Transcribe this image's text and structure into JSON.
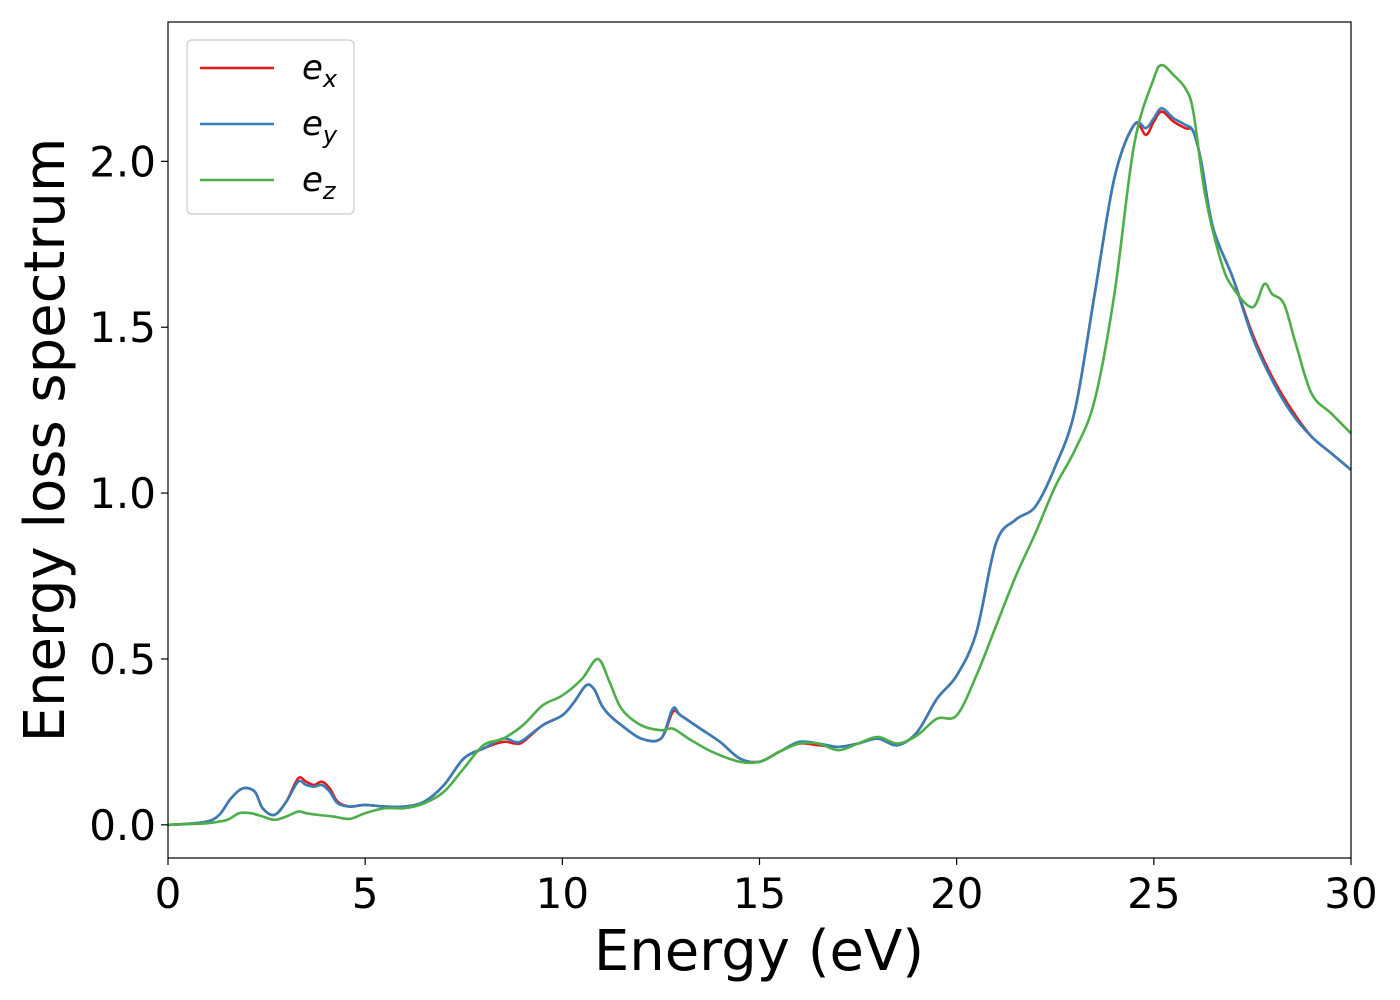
{
  "chart_data": {
    "type": "line",
    "title": "",
    "xlabel": "Energy (eV)",
    "ylabel": "Energy loss spectrum",
    "xlim": [
      0,
      30
    ],
    "ylim": [
      -0.1,
      2.42
    ],
    "xticks": [
      0,
      5,
      10,
      15,
      20,
      25,
      30
    ],
    "xtick_labels": [
      "0",
      "5",
      "10",
      "15",
      "20",
      "25",
      "30"
    ],
    "yticks": [
      0.0,
      0.5,
      1.0,
      1.5,
      2.0
    ],
    "ytick_labels": [
      "0.0",
      "0.5",
      "1.0",
      "1.5",
      "2.0"
    ],
    "grid": false,
    "legend_position": "top-left",
    "series": [
      {
        "name": "e_x",
        "legend_base": "e",
        "legend_sub": "x",
        "color": "#e41a1c",
        "x": [
          0,
          0.5,
          1.0,
          1.3,
          1.6,
          1.9,
          2.2,
          2.4,
          2.7,
          3.0,
          3.3,
          3.5,
          3.7,
          3.9,
          4.1,
          4.3,
          4.6,
          5.0,
          5.5,
          6.0,
          6.5,
          7.0,
          7.5,
          8.0,
          8.5,
          8.8,
          9.0,
          9.5,
          10.0,
          10.3,
          10.6,
          10.8,
          11.0,
          11.2,
          11.5,
          12.0,
          12.5,
          12.8,
          13.0,
          13.5,
          14.0,
          14.5,
          15.0,
          15.5,
          16.0,
          16.5,
          17.0,
          17.5,
          18.0,
          18.5,
          19.0,
          19.5,
          20.0,
          20.5,
          21.0,
          21.5,
          22.0,
          22.5,
          23.0,
          23.5,
          24.0,
          24.5,
          24.8,
          25.0,
          25.2,
          25.5,
          25.8,
          26.0,
          26.2,
          26.5,
          27.0,
          27.5,
          28.0,
          28.5,
          29.0,
          29.5,
          30.0
        ],
        "y": [
          0.0,
          0.003,
          0.01,
          0.03,
          0.08,
          0.11,
          0.1,
          0.05,
          0.03,
          0.07,
          0.14,
          0.13,
          0.12,
          0.13,
          0.11,
          0.07,
          0.055,
          0.06,
          0.055,
          0.055,
          0.07,
          0.12,
          0.2,
          0.23,
          0.25,
          0.245,
          0.25,
          0.3,
          0.33,
          0.37,
          0.42,
          0.41,
          0.36,
          0.33,
          0.3,
          0.26,
          0.26,
          0.34,
          0.33,
          0.29,
          0.25,
          0.2,
          0.19,
          0.22,
          0.245,
          0.24,
          0.235,
          0.245,
          0.26,
          0.24,
          0.28,
          0.38,
          0.45,
          0.58,
          0.85,
          0.92,
          0.96,
          1.08,
          1.25,
          1.6,
          1.95,
          2.11,
          2.08,
          2.12,
          2.15,
          2.12,
          2.1,
          2.09,
          2.0,
          1.8,
          1.65,
          1.48,
          1.35,
          1.25,
          1.17,
          1.12,
          1.07
        ]
      },
      {
        "name": "e_y",
        "legend_base": "e",
        "legend_sub": "y",
        "color": "#377eb8",
        "x": [
          0,
          0.5,
          1.0,
          1.3,
          1.6,
          1.9,
          2.2,
          2.4,
          2.7,
          3.0,
          3.3,
          3.5,
          3.7,
          3.9,
          4.1,
          4.3,
          4.6,
          5.0,
          5.5,
          6.0,
          6.5,
          7.0,
          7.5,
          8.0,
          8.5,
          8.8,
          9.0,
          9.5,
          10.0,
          10.3,
          10.6,
          10.8,
          11.0,
          11.2,
          11.5,
          12.0,
          12.5,
          12.8,
          13.0,
          13.5,
          14.0,
          14.5,
          15.0,
          15.5,
          16.0,
          16.5,
          17.0,
          17.5,
          18.0,
          18.5,
          19.0,
          19.5,
          20.0,
          20.5,
          21.0,
          21.5,
          22.0,
          22.5,
          23.0,
          23.5,
          24.0,
          24.5,
          24.8,
          25.0,
          25.2,
          25.5,
          25.8,
          26.0,
          26.2,
          26.5,
          27.0,
          27.5,
          28.0,
          28.5,
          29.0,
          29.5,
          30.0
        ],
        "y": [
          0.0,
          0.003,
          0.01,
          0.03,
          0.08,
          0.11,
          0.1,
          0.05,
          0.03,
          0.07,
          0.13,
          0.12,
          0.115,
          0.12,
          0.1,
          0.065,
          0.055,
          0.06,
          0.055,
          0.055,
          0.07,
          0.12,
          0.2,
          0.23,
          0.26,
          0.25,
          0.255,
          0.3,
          0.33,
          0.37,
          0.42,
          0.41,
          0.36,
          0.33,
          0.3,
          0.26,
          0.26,
          0.35,
          0.33,
          0.29,
          0.25,
          0.2,
          0.19,
          0.22,
          0.25,
          0.245,
          0.235,
          0.245,
          0.26,
          0.24,
          0.28,
          0.38,
          0.45,
          0.58,
          0.85,
          0.92,
          0.96,
          1.08,
          1.25,
          1.6,
          1.95,
          2.11,
          2.1,
          2.13,
          2.16,
          2.13,
          2.11,
          2.09,
          2.0,
          1.8,
          1.65,
          1.47,
          1.34,
          1.24,
          1.17,
          1.12,
          1.07
        ]
      },
      {
        "name": "e_z",
        "legend_base": "e",
        "legend_sub": "z",
        "color": "#4daf4a",
        "x": [
          0,
          0.5,
          1.0,
          1.5,
          1.8,
          2.1,
          2.4,
          2.7,
          3.0,
          3.3,
          3.5,
          3.8,
          4.2,
          4.6,
          5.0,
          5.5,
          6.0,
          6.5,
          7.0,
          7.5,
          8.0,
          8.5,
          9.0,
          9.5,
          10.0,
          10.5,
          10.9,
          11.2,
          11.5,
          12.0,
          12.5,
          12.8,
          13.2,
          13.8,
          14.5,
          15.0,
          15.5,
          16.0,
          16.5,
          17.0,
          17.5,
          18.0,
          18.5,
          19.0,
          19.5,
          20.0,
          20.5,
          21.0,
          21.5,
          22.0,
          22.5,
          23.0,
          23.5,
          24.0,
          24.5,
          25.0,
          25.2,
          25.5,
          25.8,
          26.0,
          26.3,
          26.7,
          27.0,
          27.5,
          27.8,
          28.0,
          28.3,
          28.6,
          29.0,
          29.5,
          30.0
        ],
        "y": [
          0.0,
          0.002,
          0.005,
          0.015,
          0.035,
          0.035,
          0.025,
          0.015,
          0.025,
          0.04,
          0.035,
          0.03,
          0.025,
          0.018,
          0.035,
          0.05,
          0.05,
          0.065,
          0.1,
          0.17,
          0.24,
          0.26,
          0.3,
          0.36,
          0.39,
          0.44,
          0.5,
          0.43,
          0.35,
          0.3,
          0.285,
          0.29,
          0.26,
          0.22,
          0.19,
          0.19,
          0.22,
          0.245,
          0.245,
          0.225,
          0.245,
          0.265,
          0.245,
          0.27,
          0.32,
          0.33,
          0.45,
          0.6,
          0.75,
          0.88,
          1.02,
          1.13,
          1.28,
          1.6,
          2.05,
          2.25,
          2.29,
          2.26,
          2.22,
          2.15,
          1.9,
          1.7,
          1.62,
          1.56,
          1.63,
          1.6,
          1.57,
          1.45,
          1.3,
          1.24,
          1.18
        ]
      }
    ]
  }
}
